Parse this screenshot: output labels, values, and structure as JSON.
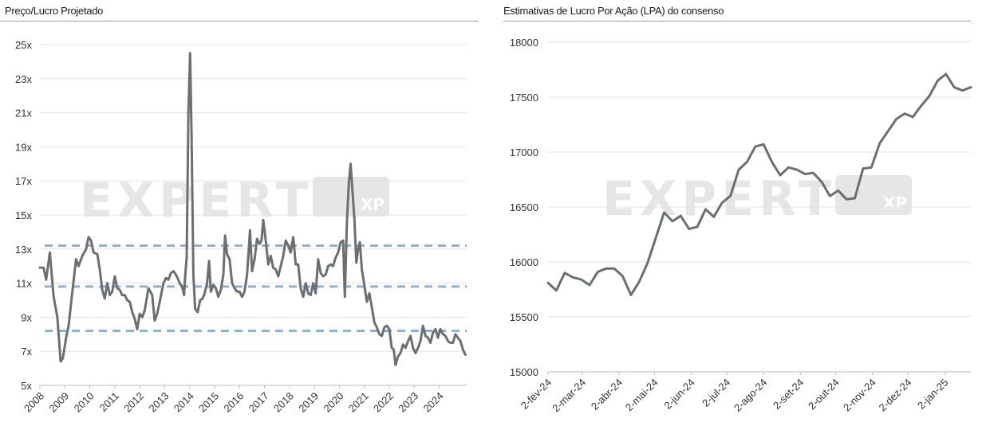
{
  "watermark": {
    "brand": "EXPERT",
    "badge": "XP"
  },
  "charts": {
    "left": {
      "title": "Preço/Lucro Projetado",
      "chart_data": {
        "type": "line",
        "title": "Preço/Lucro Projetado",
        "y_tick_labels": [
          "25x",
          "23x",
          "21x",
          "19x",
          "17x",
          "15x",
          "13x",
          "11x",
          "9x",
          "7x",
          "5x"
        ],
        "x_tick_labels": [
          "2008",
          "2009",
          "2010",
          "2011",
          "2012",
          "2013",
          "2014",
          "2015",
          "2016",
          "2017",
          "2018",
          "2019",
          "2020",
          "2021",
          "2022",
          "2023",
          "2024"
        ],
        "ylim": [
          5,
          25
        ],
        "xlim": [
          2008.0,
          2025.1
        ],
        "grid": "horizontal",
        "line_color": "#6b6f72",
        "reference_color": "#8fb1d8",
        "reference_lines": [
          13.2,
          10.8,
          8.2
        ],
        "series": [
          {
            "values": [
              [
                2008.0,
                11.9
              ],
              [
                2008.15,
                11.9
              ],
              [
                2008.25,
                11.2
              ],
              [
                2008.4,
                12.8
              ],
              [
                2008.55,
                10.2
              ],
              [
                2008.7,
                9.0
              ],
              [
                2008.83,
                6.4
              ],
              [
                2008.92,
                6.6
              ],
              [
                2009.05,
                7.8
              ],
              [
                2009.15,
                8.5
              ],
              [
                2009.3,
                10.5
              ],
              [
                2009.45,
                12.4
              ],
              [
                2009.55,
                12.0
              ],
              [
                2009.7,
                12.6
              ],
              [
                2009.85,
                13.0
              ],
              [
                2009.95,
                13.7
              ],
              [
                2010.05,
                13.5
              ],
              [
                2010.15,
                12.8
              ],
              [
                2010.3,
                12.7
              ],
              [
                2010.4,
                11.8
              ],
              [
                2010.5,
                10.6
              ],
              [
                2010.6,
                10.1
              ],
              [
                2010.7,
                11.0
              ],
              [
                2010.8,
                10.3
              ],
              [
                2010.9,
                10.5
              ],
              [
                2011.0,
                11.4
              ],
              [
                2011.1,
                10.7
              ],
              [
                2011.2,
                10.6
              ],
              [
                2011.3,
                10.3
              ],
              [
                2011.4,
                10.3
              ],
              [
                2011.5,
                10.0
              ],
              [
                2011.6,
                9.9
              ],
              [
                2011.7,
                9.3
              ],
              [
                2011.8,
                8.9
              ],
              [
                2011.9,
                8.3
              ],
              [
                2012.0,
                9.2
              ],
              [
                2012.1,
                9.0
              ],
              [
                2012.2,
                9.4
              ],
              [
                2012.35,
                10.7
              ],
              [
                2012.5,
                10.3
              ],
              [
                2012.6,
                8.8
              ],
              [
                2012.7,
                9.2
              ],
              [
                2012.8,
                9.9
              ],
              [
                2012.95,
                11.0
              ],
              [
                2013.05,
                11.3
              ],
              [
                2013.15,
                11.2
              ],
              [
                2013.25,
                11.6
              ],
              [
                2013.35,
                11.7
              ],
              [
                2013.45,
                11.5
              ],
              [
                2013.55,
                11.2
              ],
              [
                2013.6,
                11.0
              ],
              [
                2013.7,
                10.8
              ],
              [
                2013.78,
                10.3
              ],
              [
                2013.82,
                11.4
              ],
              [
                2013.88,
                12.5
              ],
              [
                2013.95,
                21.0
              ],
              [
                2014.02,
                24.5
              ],
              [
                2014.08,
                19.5
              ],
              [
                2014.15,
                11.5
              ],
              [
                2014.22,
                9.5
              ],
              [
                2014.32,
                9.3
              ],
              [
                2014.42,
                10.0
              ],
              [
                2014.52,
                10.1
              ],
              [
                2014.6,
                10.4
              ],
              [
                2014.7,
                11.0
              ],
              [
                2014.78,
                12.3
              ],
              [
                2014.85,
                10.5
              ],
              [
                2014.95,
                10.9
              ],
              [
                2015.05,
                10.7
              ],
              [
                2015.15,
                10.2
              ],
              [
                2015.25,
                10.6
              ],
              [
                2015.35,
                11.5
              ],
              [
                2015.42,
                13.8
              ],
              [
                2015.5,
                12.7
              ],
              [
                2015.6,
                12.4
              ],
              [
                2015.7,
                11.0
              ],
              [
                2015.8,
                10.7
              ],
              [
                2015.9,
                10.5
              ],
              [
                2016.0,
                10.5
              ],
              [
                2016.1,
                10.2
              ],
              [
                2016.2,
                10.5
              ],
              [
                2016.3,
                11.5
              ],
              [
                2016.42,
                14.1
              ],
              [
                2016.5,
                11.7
              ],
              [
                2016.6,
                12.4
              ],
              [
                2016.7,
                13.6
              ],
              [
                2016.8,
                13.3
              ],
              [
                2016.88,
                13.5
              ],
              [
                2016.95,
                14.7
              ],
              [
                2017.05,
                13.5
              ],
              [
                2017.15,
                12.1
              ],
              [
                2017.25,
                12.6
              ],
              [
                2017.35,
                11.9
              ],
              [
                2017.45,
                11.8
              ],
              [
                2017.55,
                11.4
              ],
              [
                2017.65,
                12.0
              ],
              [
                2017.75,
                12.6
              ],
              [
                2017.85,
                13.5
              ],
              [
                2017.95,
                13.2
              ],
              [
                2018.05,
                12.8
              ],
              [
                2018.15,
                13.7
              ],
              [
                2018.25,
                12.1
              ],
              [
                2018.35,
                12.1
              ],
              [
                2018.45,
                10.7
              ],
              [
                2018.55,
                10.2
              ],
              [
                2018.65,
                11.0
              ],
              [
                2018.75,
                10.4
              ],
              [
                2018.85,
                10.3
              ],
              [
                2018.95,
                11.0
              ],
              [
                2019.05,
                10.4
              ],
              [
                2019.15,
                12.4
              ],
              [
                2019.25,
                11.6
              ],
              [
                2019.35,
                11.4
              ],
              [
                2019.45,
                11.5
              ],
              [
                2019.55,
                12.0
              ],
              [
                2019.65,
                12.1
              ],
              [
                2019.75,
                12.0
              ],
              [
                2019.85,
                12.5
              ],
              [
                2019.95,
                12.8
              ],
              [
                2020.05,
                13.4
              ],
              [
                2020.15,
                13.5
              ],
              [
                2020.22,
                10.2
              ],
              [
                2020.3,
                14.5
              ],
              [
                2020.38,
                16.9
              ],
              [
                2020.45,
                18.0
              ],
              [
                2020.52,
                16.5
              ],
              [
                2020.6,
                14.8
              ],
              [
                2020.68,
                12.2
              ],
              [
                2020.75,
                13.0
              ],
              [
                2020.82,
                13.4
              ],
              [
                2020.9,
                11.8
              ],
              [
                2021.0,
                10.9
              ],
              [
                2021.1,
                9.9
              ],
              [
                2021.2,
                10.4
              ],
              [
                2021.3,
                9.6
              ],
              [
                2021.4,
                8.7
              ],
              [
                2021.5,
                8.4
              ],
              [
                2021.6,
                8.0
              ],
              [
                2021.7,
                7.9
              ],
              [
                2021.8,
                8.4
              ],
              [
                2021.9,
                8.5
              ],
              [
                2022.0,
                8.3
              ],
              [
                2022.1,
                7.2
              ],
              [
                2022.18,
                7.1
              ],
              [
                2022.25,
                6.2
              ],
              [
                2022.35,
                6.7
              ],
              [
                2022.45,
                6.9
              ],
              [
                2022.55,
                7.4
              ],
              [
                2022.65,
                7.2
              ],
              [
                2022.75,
                7.6
              ],
              [
                2022.85,
                7.9
              ],
              [
                2022.95,
                7.2
              ],
              [
                2023.05,
                6.9
              ],
              [
                2023.15,
                7.2
              ],
              [
                2023.25,
                7.6
              ],
              [
                2023.35,
                8.5
              ],
              [
                2023.45,
                7.9
              ],
              [
                2023.55,
                7.8
              ],
              [
                2023.65,
                7.5
              ],
              [
                2023.75,
                8.1
              ],
              [
                2023.85,
                8.3
              ],
              [
                2023.95,
                7.8
              ],
              [
                2024.05,
                8.3
              ],
              [
                2024.15,
                8.0
              ],
              [
                2024.25,
                7.9
              ],
              [
                2024.35,
                7.6
              ],
              [
                2024.45,
                7.5
              ],
              [
                2024.55,
                7.5
              ],
              [
                2024.65,
                8.0
              ],
              [
                2024.75,
                7.8
              ],
              [
                2024.85,
                7.6
              ],
              [
                2024.95,
                7.1
              ],
              [
                2025.05,
                6.8
              ]
            ]
          }
        ]
      }
    },
    "right": {
      "title": "Estimativas de Lucro Por Ação (LPA) do consenso",
      "chart_data": {
        "type": "line",
        "title": "Estimativas de Lucro Por Ação (LPA) do consenso",
        "y_tick_labels": [
          "18000",
          "17500",
          "17000",
          "16500",
          "16000",
          "15500",
          "15000"
        ],
        "x_tick_labels": [
          "2-fev-24",
          "2-mar-24",
          "2-abr-24",
          "2-mai-24",
          "2-jun-24",
          "2-jul-24",
          "2-ago-24",
          "2-set-24",
          "2-out-24",
          "2-nov-24",
          "2-dez-24",
          "2-jan-25"
        ],
        "ylim": [
          15000,
          18000
        ],
        "grid": "horizontal",
        "line_color": "#6b6f72",
        "series": [
          {
            "x": [
              "2024-02-02",
              "2024-02-09",
              "2024-02-16",
              "2024-02-23",
              "2024-03-01",
              "2024-03-08",
              "2024-03-15",
              "2024-03-22",
              "2024-03-29",
              "2024-04-05",
              "2024-04-12",
              "2024-04-19",
              "2024-04-26",
              "2024-05-03",
              "2024-05-10",
              "2024-05-17",
              "2024-05-24",
              "2024-05-31",
              "2024-06-07",
              "2024-06-14",
              "2024-06-21",
              "2024-06-28",
              "2024-07-05",
              "2024-07-12",
              "2024-07-19",
              "2024-07-26",
              "2024-08-02",
              "2024-08-09",
              "2024-08-16",
              "2024-08-23",
              "2024-08-30",
              "2024-09-06",
              "2024-09-13",
              "2024-09-20",
              "2024-09-27",
              "2024-10-04",
              "2024-10-11",
              "2024-10-18",
              "2024-10-25",
              "2024-11-01",
              "2024-11-08",
              "2024-11-15",
              "2024-11-22",
              "2024-11-29",
              "2024-12-06",
              "2024-12-13",
              "2024-12-20",
              "2024-12-27",
              "2025-01-03",
              "2025-01-10",
              "2025-01-17",
              "2025-01-24"
            ],
            "values": [
              15810,
              15740,
              15900,
              15860,
              15840,
              15790,
              15910,
              15940,
              15940,
              15870,
              15700,
              15820,
              15990,
              16220,
              16450,
              16370,
              16420,
              16300,
              16320,
              16480,
              16410,
              16540,
              16600,
              16840,
              16910,
              17050,
              17070,
              16910,
              16790,
              16860,
              16840,
              16800,
              16810,
              16730,
              16600,
              16650,
              16570,
              16580,
              16850,
              16860,
              17080,
              17190,
              17300,
              17350,
              17320,
              17420,
              17510,
              17650,
              17710,
              17590,
              17560,
              17590
            ]
          }
        ]
      }
    }
  }
}
